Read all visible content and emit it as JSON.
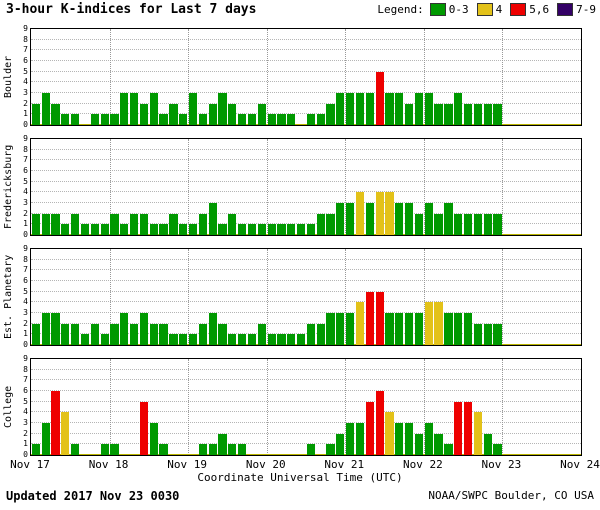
{
  "title": "3-hour K-indices for Last 7 days",
  "legend": {
    "label": "Legend:",
    "items": [
      {
        "label": "0-3",
        "color": "#009900",
        "name": "green"
      },
      {
        "label": "4",
        "color": "#e3c219",
        "name": "yellow"
      },
      {
        "label": "5,6",
        "color": "#ee0000",
        "name": "red"
      },
      {
        "label": "7-9",
        "color": "#330066",
        "name": "purple"
      }
    ]
  },
  "x_axis": {
    "title": "Coordinate Universal Time (UTC)",
    "ticks": [
      "Nov 17",
      "Nov 18",
      "Nov 19",
      "Nov 20",
      "Nov 21",
      "Nov 22",
      "Nov 23",
      "Nov 24"
    ]
  },
  "y_axis": {
    "ticks": [
      9,
      8,
      7,
      6,
      5,
      4,
      3,
      2,
      1,
      0
    ],
    "max": 9
  },
  "footer": {
    "updated": "Updated 2017 Nov 23 0030",
    "source": "NOAA/SWPC Boulder, CO USA"
  },
  "chart_data": {
    "type": "bar",
    "bars_per_day": 8,
    "days_shown": 7,
    "interval_hours": 3,
    "ylim": [
      0,
      9
    ],
    "colors": {
      "green": "#009900",
      "yellow": "#e3c219",
      "red": "#ee0000",
      "purple": "#330066"
    },
    "color_rule": "0-3 green, 4 yellow, 5-6 red, 7-9 purple",
    "panels": [
      {
        "station": "Boulder",
        "values": [
          2,
          3,
          2,
          1,
          1,
          0,
          1,
          1,
          1,
          3,
          3,
          2,
          3,
          1,
          2,
          1,
          3,
          1,
          2,
          3,
          2,
          1,
          1,
          2,
          1,
          1,
          1,
          0,
          1,
          1,
          2,
          3,
          3,
          3,
          3,
          5,
          3,
          3,
          2,
          3,
          3,
          2,
          2,
          3,
          2,
          2,
          2,
          2
        ]
      },
      {
        "station": "Fredericksburg",
        "values": [
          2,
          2,
          2,
          1,
          2,
          1,
          1,
          1,
          2,
          1,
          2,
          2,
          1,
          1,
          2,
          1,
          1,
          2,
          3,
          1,
          2,
          1,
          1,
          1,
          1,
          1,
          1,
          1,
          1,
          2,
          2,
          3,
          3,
          4,
          3,
          4,
          4,
          3,
          3,
          2,
          3,
          2,
          3,
          2,
          2,
          2,
          2,
          2
        ]
      },
      {
        "station": "Est. Planetary",
        "values": [
          2,
          3,
          3,
          2,
          2,
          1,
          2,
          1,
          2,
          3,
          2,
          3,
          2,
          2,
          1,
          1,
          1,
          2,
          3,
          2,
          1,
          1,
          1,
          2,
          1,
          1,
          1,
          1,
          2,
          2,
          3,
          3,
          3,
          4,
          5,
          5,
          3,
          3,
          3,
          3,
          4,
          4,
          3,
          3,
          3,
          2,
          2,
          2
        ]
      },
      {
        "station": "College",
        "values": [
          1,
          3,
          6,
          4,
          1,
          0,
          0,
          1,
          1,
          0,
          0,
          5,
          3,
          1,
          0,
          0,
          0,
          1,
          1,
          2,
          1,
          1,
          0,
          0,
          0,
          0,
          0,
          0,
          1,
          0,
          1,
          2,
          3,
          3,
          5,
          6,
          4,
          3,
          3,
          2,
          3,
          2,
          1,
          5,
          5,
          4,
          2,
          1
        ]
      }
    ]
  }
}
